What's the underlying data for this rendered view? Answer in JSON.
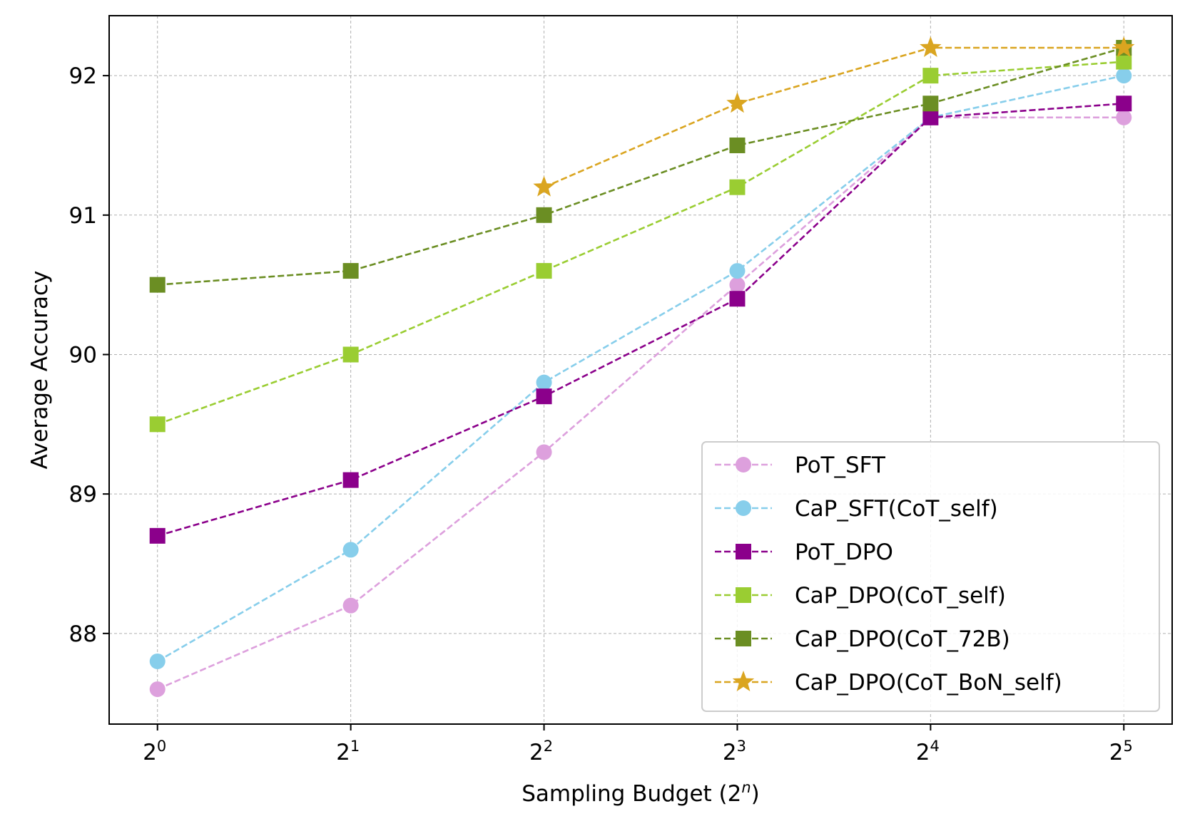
{
  "chart_data": {
    "type": "line",
    "xlabel": "Sampling Budget (2^n)",
    "xlabel_parts": {
      "main": "Sampling Budget (2",
      "sup": "n",
      "close": ")"
    },
    "ylabel": "Average Accuracy",
    "x": [
      0,
      1,
      2,
      3,
      4,
      5
    ],
    "x_tick_labels": [
      {
        "base": "2",
        "exp": "0"
      },
      {
        "base": "2",
        "exp": "1"
      },
      {
        "base": "2",
        "exp": "2"
      },
      {
        "base": "2",
        "exp": "3"
      },
      {
        "base": "2",
        "exp": "4"
      },
      {
        "base": "2",
        "exp": "5"
      }
    ],
    "y_ticks": [
      88,
      89,
      90,
      91,
      92
    ],
    "y_tick_labels": [
      "88",
      "89",
      "90",
      "91",
      "92"
    ],
    "xlim": [
      -0.25,
      5.25
    ],
    "ylim": [
      87.35,
      92.43
    ],
    "grid": true,
    "legend_position": "lower-right",
    "series": [
      {
        "name": "PoT_SFT",
        "color": "#dda0dd",
        "marker": "circle",
        "x": [
          0,
          1,
          2,
          3,
          4,
          5
        ],
        "values": [
          87.6,
          88.2,
          89.3,
          90.5,
          91.7,
          91.7
        ]
      },
      {
        "name": "CaP_SFT(CoT_self)",
        "color": "#87ceeb",
        "marker": "circle",
        "x": [
          0,
          1,
          2,
          3,
          4,
          5
        ],
        "values": [
          87.8,
          88.6,
          89.8,
          90.6,
          91.7,
          92.0
        ]
      },
      {
        "name": "PoT_DPO",
        "color": "#8b008b",
        "marker": "square",
        "x": [
          0,
          1,
          2,
          3,
          4,
          5
        ],
        "values": [
          88.7,
          89.1,
          89.7,
          90.4,
          91.7,
          91.8
        ]
      },
      {
        "name": "CaP_DPO(CoT_self)",
        "color": "#9acd32",
        "marker": "square",
        "x": [
          0,
          1,
          2,
          3,
          4,
          5
        ],
        "values": [
          89.5,
          90.0,
          90.6,
          91.2,
          92.0,
          92.1
        ]
      },
      {
        "name": "CaP_DPO(CoT_72B)",
        "color": "#6b8e23",
        "marker": "square",
        "x": [
          0,
          1,
          2,
          3,
          4,
          5
        ],
        "values": [
          90.5,
          90.6,
          91.0,
          91.5,
          91.8,
          92.2
        ]
      },
      {
        "name": "CaP_DPO(CoT_BoN_self)",
        "color": "#daa520",
        "marker": "star",
        "x": [
          2,
          3,
          4,
          5
        ],
        "values": [
          91.2,
          91.8,
          92.2,
          92.2
        ]
      }
    ]
  }
}
